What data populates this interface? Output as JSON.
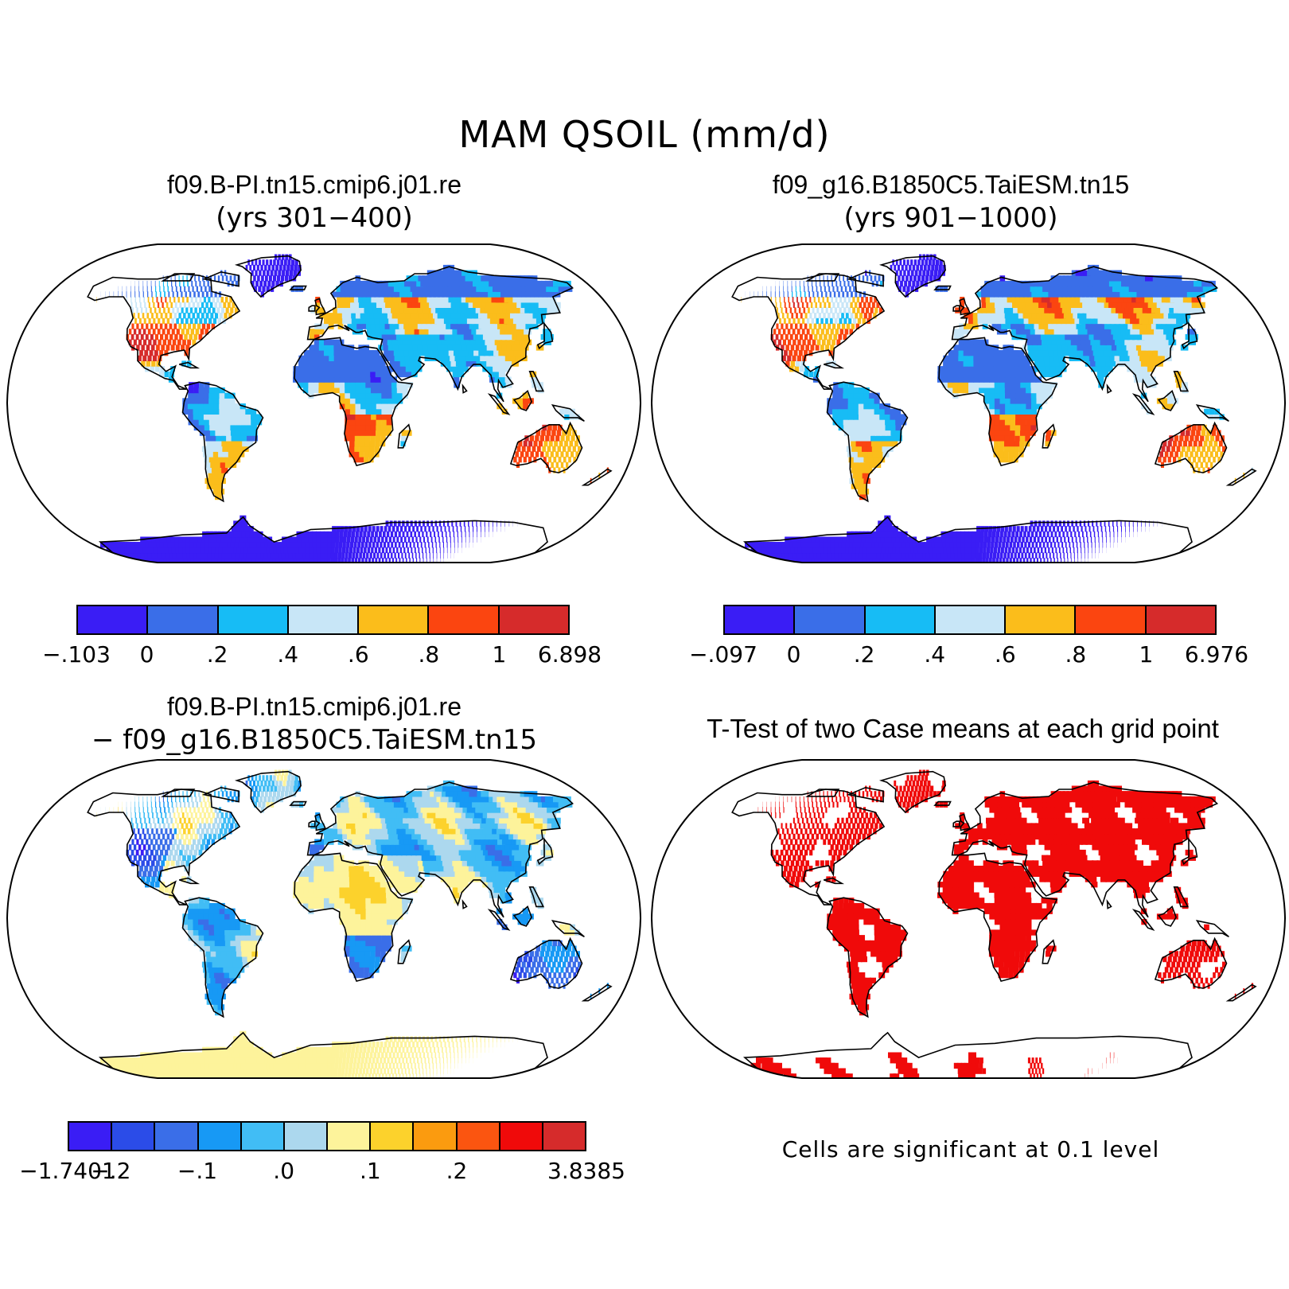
{
  "title": "MAM QSOIL (mm/d)",
  "panels": {
    "case1": {
      "title": "f09.B-PI.tn15.cmip6.j01.re",
      "subtitle": "(yrs 301−400)"
    },
    "case2": {
      "title": "f09_g16.B1850C5.TaiESM.tn15",
      "subtitle": "(yrs 901−1000)"
    },
    "diff": {
      "title": "f09.B-PI.tn15.cmip6.j01.re",
      "subtitle": "− f09_g16.B1850C5.TaiESM.tn15"
    },
    "ttest": {
      "title": "T-Test of two Case means at each grid point",
      "note": "Cells are significant at 0.1 level"
    }
  },
  "colorbars": {
    "case1": {
      "colors": [
        "#3a1df5",
        "#3a6ee8",
        "#17bcf5",
        "#c8e6f7",
        "#fbbd1b",
        "#fb4510",
        "#d62b2b"
      ],
      "labels": [
        "−.103",
        "0",
        ".2",
        ".4",
        ".6",
        ".8",
        "1",
        "6.898"
      ]
    },
    "case2": {
      "colors": [
        "#3a1df5",
        "#3a6ee8",
        "#17bcf5",
        "#c8e6f7",
        "#fbbd1b",
        "#fb4510",
        "#d62b2b"
      ],
      "labels": [
        "−.097",
        "0",
        ".2",
        ".4",
        ".6",
        ".8",
        "1",
        "6.976"
      ]
    },
    "diff": {
      "colors": [
        "#3a1df5",
        "#2b4ce8",
        "#3a6ee8",
        "#1799f5",
        "#41bdf5",
        "#acd8ee",
        "#fdf39b",
        "#fcd22c",
        "#fb9b0f",
        "#fb5510",
        "#f00a0a",
        "#d62b2b"
      ],
      "labels": [
        "−1.7401",
        "−.2",
        "",
        "−.1",
        "",
        ".0",
        "",
        ".1",
        "",
        ".2",
        "",
        "",
        "3.8385"
      ]
    }
  },
  "map_colors": {
    "ocean": "#ffffff",
    "antarctica_case": "#3a1df5",
    "antarctica_diff": "#fdf39b",
    "significant": "#f00a0a"
  }
}
